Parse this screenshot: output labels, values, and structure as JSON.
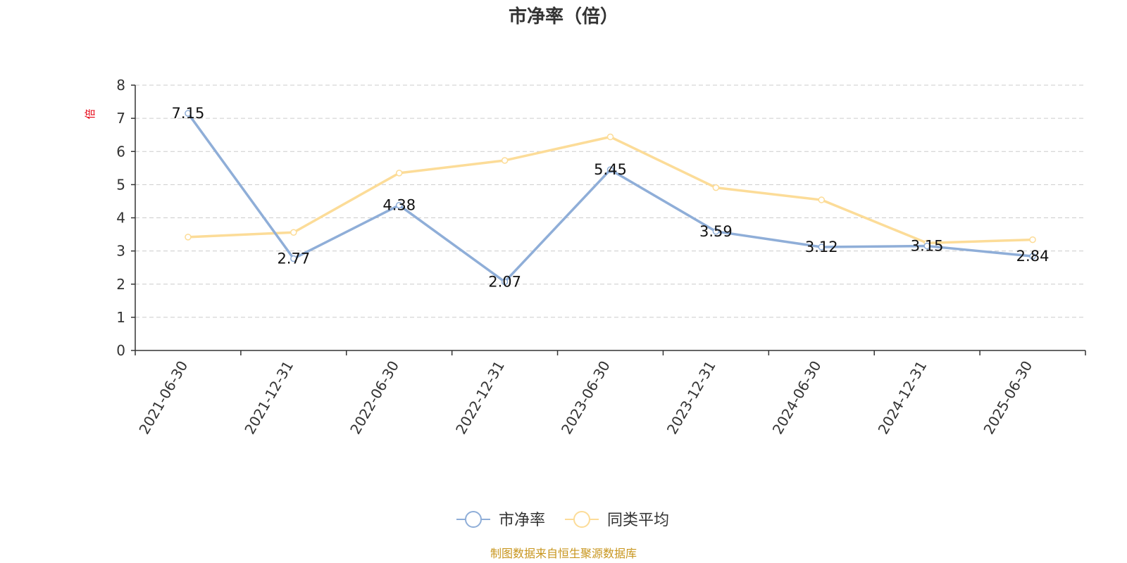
{
  "chart_data": {
    "type": "line",
    "title": "市净率（倍）",
    "ylabel": "倍",
    "xlabel": "",
    "ylim": [
      0,
      8
    ],
    "yticks": [
      0,
      1,
      2,
      3,
      4,
      5,
      6,
      7,
      8
    ],
    "grid": true,
    "legend_position": "bottom-center",
    "categories": [
      "2021-06-30",
      "2021-12-31",
      "2022-06-30",
      "2022-12-31",
      "2023-06-30",
      "2023-12-31",
      "2024-06-30",
      "2024-12-31",
      "2025-06-30"
    ],
    "series": [
      {
        "name": "市净率",
        "color": "#8faed8",
        "values": [
          7.15,
          2.77,
          4.38,
          2.07,
          5.45,
          3.59,
          3.12,
          3.15,
          2.84
        ],
        "labels": [
          "7.15",
          "2.77",
          "4.38",
          "2.07",
          "5.45",
          "3.59",
          "3.12",
          "3.15",
          "2.84"
        ]
      },
      {
        "name": "同类平均",
        "color": "#fcdc98",
        "values": [
          3.42,
          3.56,
          5.35,
          5.73,
          6.44,
          4.91,
          4.54,
          3.24,
          3.34
        ]
      }
    ],
    "source_note": "制图数据来自恒生聚源数据库"
  }
}
